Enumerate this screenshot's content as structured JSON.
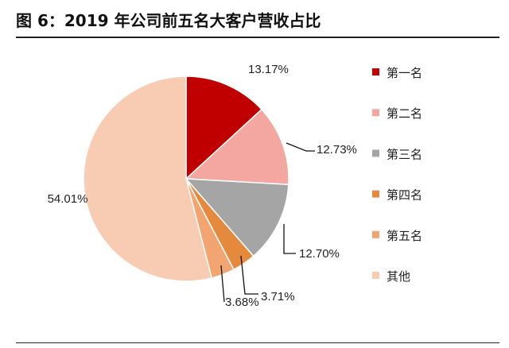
{
  "chart_data": {
    "type": "pie",
    "title": "图 6：2019 年公司前五名大客户营收占比",
    "start": "12 o'clock",
    "direction": "clockwise",
    "legend_position": "right",
    "slices": [
      {
        "name": "第一名",
        "value": 13.17,
        "label": "13.17%",
        "color": "#C00000"
      },
      {
        "name": "第二名",
        "value": 12.73,
        "label": "12.73%",
        "color": "#F4A7A0"
      },
      {
        "name": "第三名",
        "value": 12.7,
        "label": "12.70%",
        "color": "#A5A5A5"
      },
      {
        "name": "第四名",
        "value": 3.71,
        "label": "3.71%",
        "color": "#E5893C"
      },
      {
        "name": "第五名",
        "value": 3.68,
        "label": "3.68%",
        "color": "#F2A571"
      },
      {
        "name": "其他",
        "value": 54.01,
        "label": "54.01%",
        "color": "#F8CBB3"
      }
    ]
  }
}
